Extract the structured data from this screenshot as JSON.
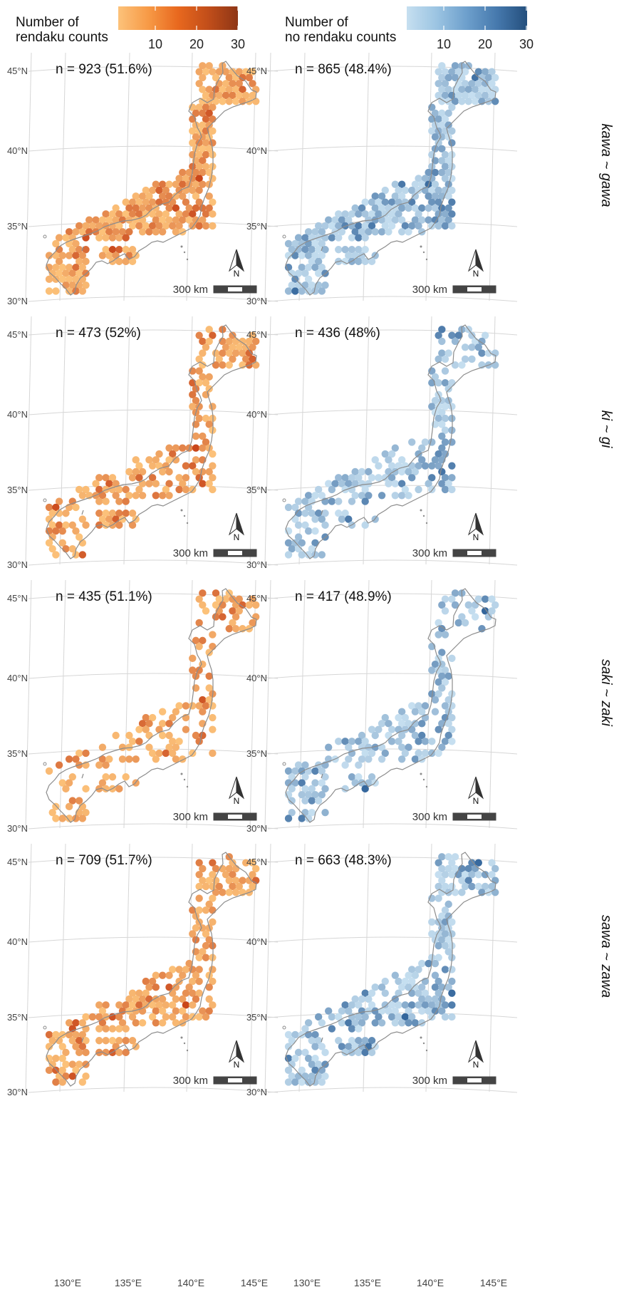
{
  "legend": {
    "rendaku": {
      "title_line1": "Number of",
      "title_line2": "rendaku counts",
      "ticks": [
        "10",
        "20",
        "30"
      ],
      "colors": [
        "#fcc27a",
        "#f79a46",
        "#e8681e",
        "#c24e1a",
        "#8e3616"
      ]
    },
    "no_rendaku": {
      "title_line1": "Number of",
      "title_line2": "no rendaku counts",
      "ticks": [
        "10",
        "20",
        "30"
      ],
      "colors": [
        "#c6dff0",
        "#9bc4e2",
        "#6d9fcc",
        "#4679ad",
        "#244f7d"
      ]
    }
  },
  "latitude_labels": [
    "45°N",
    "40°N",
    "35°N",
    "30°N"
  ],
  "longitude_labels": [
    "130°E",
    "135°E",
    "140°E",
    "145°E"
  ],
  "scale_bar_label": "300 km",
  "north_arrow_label": "N",
  "rows": [
    {
      "label": "kawa ~ gawa",
      "rendaku_n": "n = 923 (51.6%)",
      "no_rendaku_n": "n = 865 (48.4%)"
    },
    {
      "label": "ki ~ gi",
      "rendaku_n": "n = 473 (52%)",
      "no_rendaku_n": "n = 436 (48%)"
    },
    {
      "label": "saki ~ zaki",
      "rendaku_n": "n = 435 (51.1%)",
      "no_rendaku_n": "n = 417 (48.9%)"
    },
    {
      "label": "sawa ~ zawa",
      "rendaku_n": "n = 709 (51.7%)",
      "no_rendaku_n": "n = 663 (48.3%)"
    }
  ],
  "colors": {
    "outline": "#8c8c8c",
    "grid": "#d6d6d6",
    "rendaku_light": "#fcc27a",
    "rendaku_dark": "#c9461a",
    "no_rendaku_light": "#c6dff0",
    "no_rendaku_dark": "#2f6299"
  }
}
